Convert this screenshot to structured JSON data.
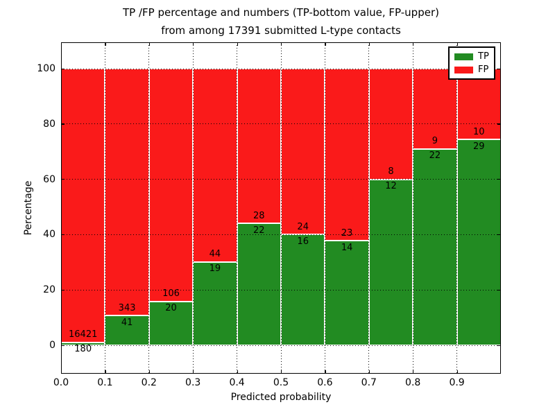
{
  "title": {
    "line1": "TP /FP percentage and numbers (TP-bottom value, FP-upper)",
    "line2": "from among 17391 submitted L-type contacts"
  },
  "axes": {
    "xlabel": "Predicted probability",
    "ylabel": "Percentage",
    "xtick_labels": [
      "0.0",
      "0.1",
      "0.2",
      "0.3",
      "0.4",
      "0.5",
      "0.6",
      "0.7",
      "0.8",
      "0.9"
    ],
    "ytick_labels": [
      "0",
      "20",
      "40",
      "60",
      "80",
      "100"
    ],
    "ytick_values": [
      0,
      20,
      40,
      60,
      80,
      100
    ]
  },
  "legend": {
    "items": [
      {
        "label": "TP",
        "color": "#228b22"
      },
      {
        "label": "FP",
        "color": "#fa1a1a"
      }
    ]
  },
  "colors": {
    "tp": "#228b22",
    "fp": "#fa1a1a",
    "grid": "#000000",
    "bar_edge": "#ffffff"
  },
  "chart_data": {
    "type": "bar",
    "stacked": true,
    "normalized_to_percent": true,
    "title": "TP /FP percentage and numbers (TP-bottom value, FP-upper) from among 17391 submitted L-type contacts",
    "xlabel": "Predicted probability",
    "ylabel": "Percentage",
    "total_contacts": 17391,
    "bin_edges": [
      0.0,
      0.1,
      0.2,
      0.3,
      0.4,
      0.5,
      0.6,
      0.7,
      0.8,
      0.9,
      1.0
    ],
    "categories": [
      "0.0-0.1",
      "0.1-0.2",
      "0.2-0.3",
      "0.3-0.4",
      "0.4-0.5",
      "0.5-0.6",
      "0.6-0.7",
      "0.7-0.8",
      "0.8-0.9",
      "0.9-1.0"
    ],
    "series": [
      {
        "name": "TP",
        "counts": [
          180,
          41,
          20,
          19,
          22,
          16,
          14,
          12,
          22,
          29
        ]
      },
      {
        "name": "FP",
        "counts": [
          16421,
          343,
          106,
          44,
          28,
          24,
          23,
          8,
          9,
          10
        ]
      }
    ],
    "tp_percent": [
      1.08,
      10.68,
      15.87,
      30.16,
      44.0,
      40.0,
      37.84,
      60.0,
      70.97,
      74.36
    ],
    "fp_percent": [
      98.92,
      89.32,
      84.13,
      69.84,
      56.0,
      60.0,
      62.16,
      40.0,
      29.03,
      25.64
    ],
    "xlim": [
      0.0,
      1.0
    ],
    "ylim": [
      -10.6,
      110
    ],
    "grid": true,
    "grid_style": "dotted",
    "legend_position": "upper right"
  }
}
